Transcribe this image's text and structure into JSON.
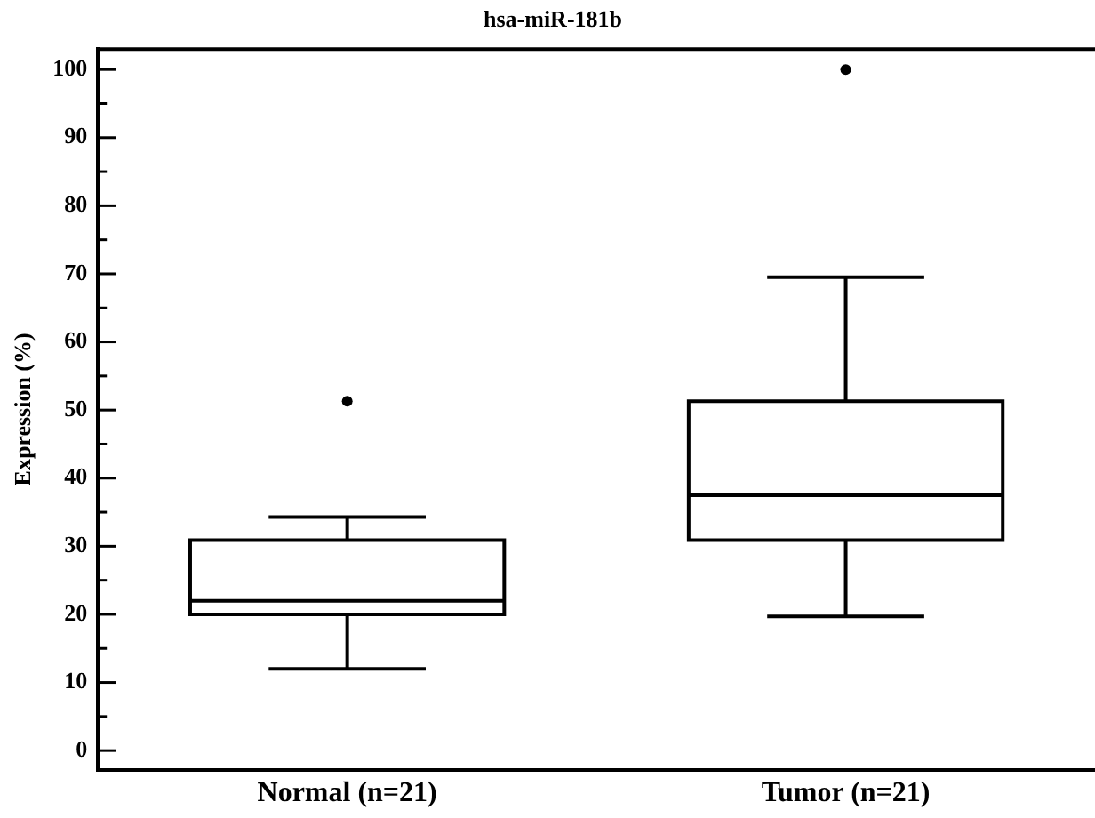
{
  "chart_data": {
    "type": "box",
    "title": "hsa-miR-181b",
    "ylabel": "Expression (%)",
    "categories": [
      "Normal (n=21)",
      "Tumor (n=21)"
    ],
    "boxes": [
      {
        "low": 12,
        "q1": 20,
        "median": 22,
        "q3": 30.9,
        "high": 34.3,
        "outliers": [
          51.3
        ]
      },
      {
        "low": 19.7,
        "q1": 30.9,
        "median": 37.5,
        "q3": 51.3,
        "high": 69.5,
        "outliers": [
          100
        ]
      }
    ],
    "color": "#000000",
    "ylim": [
      -2.8,
      103
    ],
    "yticks": [
      0,
      {
        "value": 5,
        "label": null
      },
      10,
      {
        "value": 15,
        "label": null
      },
      20,
      {
        "value": 25,
        "label": null
      },
      30,
      {
        "value": 35,
        "label": null
      },
      40,
      {
        "value": 45,
        "label": null
      },
      50,
      {
        "value": 55,
        "label": null
      },
      60,
      {
        "value": 65,
        "label": null
      },
      70,
      {
        "value": 75,
        "label": null
      },
      80,
      {
        "value": 85,
        "label": null
      },
      90,
      {
        "value": 95,
        "label": null
      },
      100
    ],
    "grid": false,
    "legend": false
  }
}
